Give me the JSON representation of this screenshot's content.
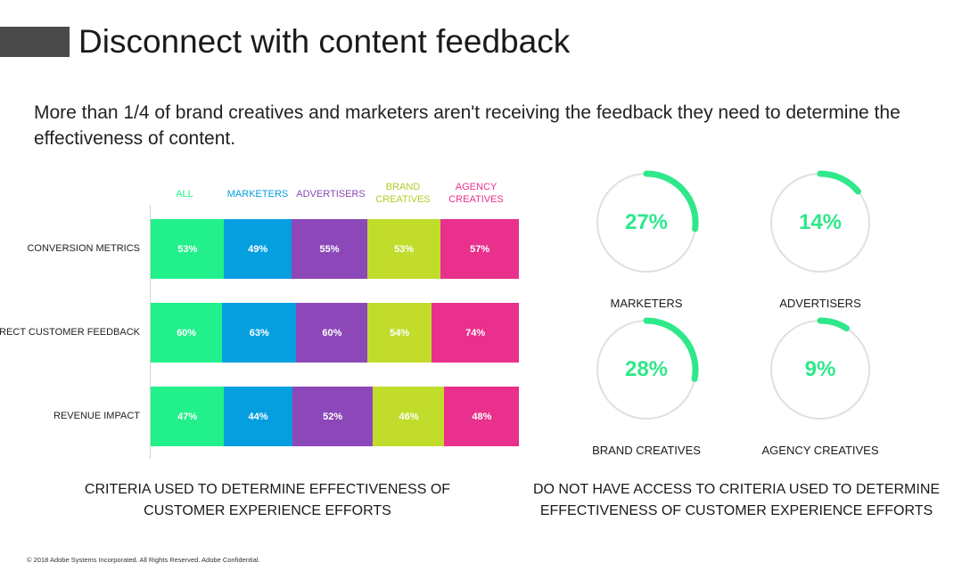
{
  "title": "Disconnect with content feedback",
  "subtitle": "More than 1/4 of brand creatives and marketers aren't receiving the feedback they need to determine the effectiveness of content.",
  "colors": {
    "all": "#22f08a",
    "marketers": "#059fe0",
    "advertisers": "#8c48b8",
    "brand_creatives": "#c2dc2c",
    "agency_creatives": "#e8308c",
    "donut_arc": "#2ee88a",
    "donut_track": "#e0e0e0"
  },
  "bar_chart": {
    "headers": [
      {
        "lines": [
          "ALL"
        ],
        "color": "#22f08a"
      },
      {
        "lines": [
          "MARKETERS"
        ],
        "color": "#059fe0"
      },
      {
        "lines": [
          "ADVERTISERS"
        ],
        "color": "#8c48b8"
      },
      {
        "lines": [
          "BRAND",
          "CREATIVES"
        ],
        "color": "#b3cc28"
      },
      {
        "lines": [
          "AGENCY",
          "CREATIVES"
        ],
        "color": "#e8308c"
      }
    ],
    "caption_line1": "CRITERIA USED TO DETERMINE EFFECTIVENESS OF",
    "caption_line2": "CUSTOMER EXPERIENCE EFFORTS"
  },
  "chart_data": [
    {
      "type": "bar",
      "stacked": true,
      "orientation": "horizontal",
      "categories": [
        "CONVERSION METRICS",
        "DIRECT CUSTOMER FEEDBACK",
        "REVENUE IMPACT"
      ],
      "series": [
        {
          "name": "ALL",
          "values": [
            53,
            60,
            47
          ]
        },
        {
          "name": "MARKETERS",
          "values": [
            49,
            63,
            44
          ]
        },
        {
          "name": "ADVERTISERS",
          "values": [
            55,
            60,
            52
          ]
        },
        {
          "name": "BRAND CREATIVES",
          "values": [
            53,
            54,
            46
          ]
        },
        {
          "name": "AGENCY CREATIVES",
          "values": [
            57,
            74,
            48
          ]
        }
      ],
      "value_labels": [
        [
          "53%",
          "60%",
          "47%"
        ],
        [
          "49%",
          "63%",
          "44%"
        ],
        [
          "55%",
          "60%",
          "52%"
        ],
        [
          "53%",
          "54%",
          "46%"
        ],
        [
          "57%",
          "74%",
          "48%"
        ]
      ],
      "title": "",
      "xlabel": "",
      "ylabel": "",
      "grid": false
    },
    {
      "type": "pie",
      "variant": "donut",
      "categories": [
        "MARKETERS",
        "ADVERTISERS",
        "BRAND CREATIVES",
        "AGENCY CREATIVES"
      ],
      "values": [
        27,
        14,
        28,
        9
      ],
      "value_labels": [
        "27%",
        "14%",
        "28%",
        "9%"
      ],
      "title": ""
    }
  ],
  "donut_caption_line1": "DO NOT HAVE ACCESS TO CRITERIA USED TO DETERMINE",
  "donut_caption_line2": "EFFECTIVENESS OF CUSTOMER EXPERIENCE EFFORTS",
  "footer": "© 2018 Adobe Systems Incorporated.  All Rights Reserved.  Adobe Confidential."
}
